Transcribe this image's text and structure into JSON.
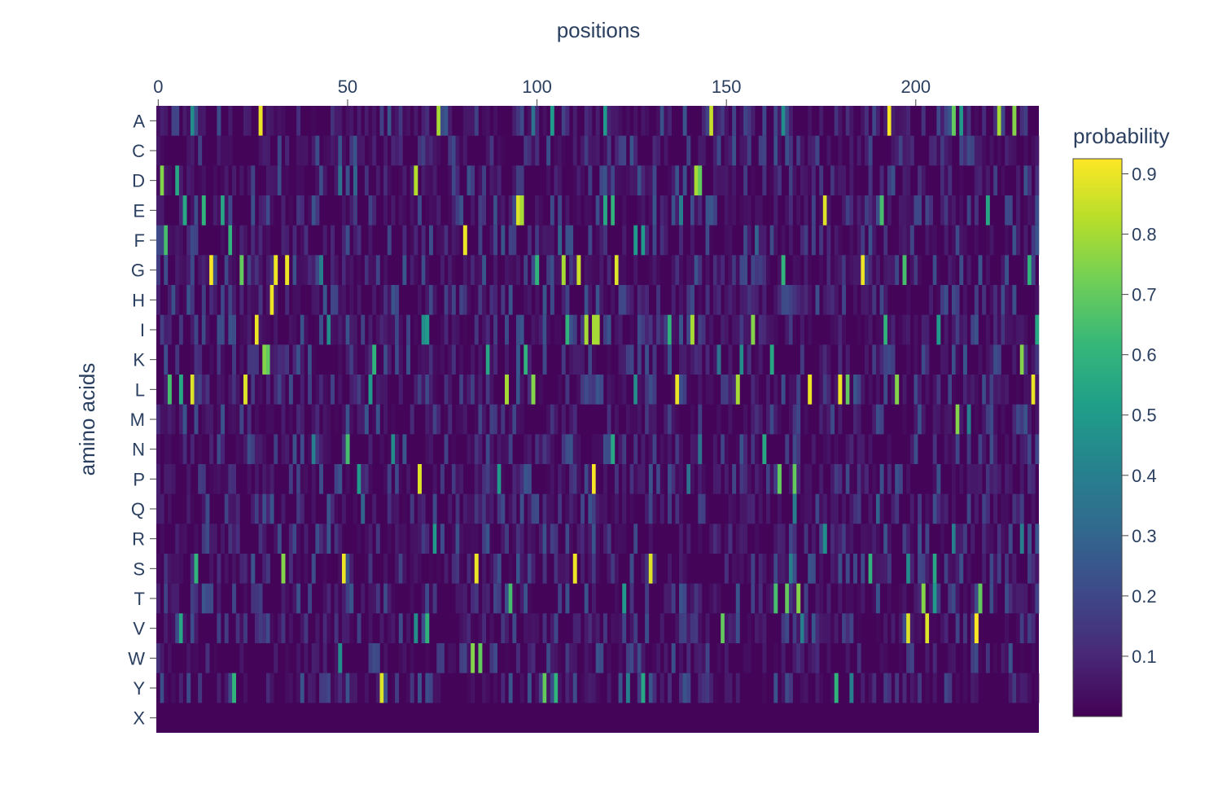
{
  "chart_data": {
    "type": "heatmap",
    "xlabel": "positions",
    "ylabel": "amino acids",
    "x_ticks": [
      0,
      50,
      100,
      150,
      200
    ],
    "xlim": [
      -0.5,
      232.5
    ],
    "x_axis_side": "top",
    "categories_y": [
      "A",
      "C",
      "D",
      "E",
      "F",
      "G",
      "H",
      "I",
      "K",
      "L",
      "M",
      "N",
      "P",
      "Q",
      "R",
      "S",
      "T",
      "V",
      "W",
      "Y",
      "X"
    ],
    "n_positions": 233,
    "colorbar": {
      "title": "probability",
      "range": [
        0.0,
        0.925
      ],
      "ticks": [
        0.1,
        0.2,
        0.3,
        0.4,
        0.5,
        0.6,
        0.7,
        0.8,
        0.9
      ],
      "tick_labels": [
        "0.1",
        "0.2",
        "0.3",
        "0.4",
        "0.5",
        "0.6",
        "0.7",
        "0.8",
        "0.9"
      ]
    },
    "colorscale": "Viridis",
    "colorscale_stops": [
      "#440154",
      "#482878",
      "#3e4989",
      "#31688e",
      "#26828e",
      "#1f9e89",
      "#35b779",
      "#6ece58",
      "#b5de2b",
      "#fde725"
    ],
    "background_value": 0.01,
    "highlights": [
      {
        "aa": "A",
        "pos": 27,
        "p": 0.9
      },
      {
        "aa": "A",
        "pos": 74,
        "p": 0.8
      },
      {
        "aa": "A",
        "pos": 146,
        "p": 0.85
      },
      {
        "aa": "A",
        "pos": 193,
        "p": 0.92
      },
      {
        "aa": "A",
        "pos": 210,
        "p": 0.7
      },
      {
        "aa": "A",
        "pos": 222,
        "p": 0.8
      },
      {
        "aa": "A",
        "pos": 226,
        "p": 0.75
      },
      {
        "aa": "A",
        "pos": 9,
        "p": 0.45
      },
      {
        "aa": "A",
        "pos": 104,
        "p": 0.5
      },
      {
        "aa": "A",
        "pos": 118,
        "p": 0.5
      },
      {
        "aa": "A",
        "pos": 165,
        "p": 0.45
      },
      {
        "aa": "A",
        "pos": 212,
        "p": 0.5
      },
      {
        "aa": "A",
        "pos": 99,
        "p": 0.35
      },
      {
        "aa": "D",
        "pos": 1,
        "p": 0.75
      },
      {
        "aa": "D",
        "pos": 5,
        "p": 0.55
      },
      {
        "aa": "D",
        "pos": 68,
        "p": 0.82
      },
      {
        "aa": "D",
        "pos": 142,
        "p": 0.8
      },
      {
        "aa": "D",
        "pos": 143,
        "p": 0.7
      },
      {
        "aa": "D",
        "pos": 48,
        "p": 0.35
      },
      {
        "aa": "D",
        "pos": 52,
        "p": 0.3
      },
      {
        "aa": "E",
        "pos": 95,
        "p": 0.88
      },
      {
        "aa": "E",
        "pos": 96,
        "p": 0.8
      },
      {
        "aa": "E",
        "pos": 176,
        "p": 0.88
      },
      {
        "aa": "E",
        "pos": 7,
        "p": 0.55
      },
      {
        "aa": "E",
        "pos": 12,
        "p": 0.6
      },
      {
        "aa": "E",
        "pos": 17,
        "p": 0.55
      },
      {
        "aa": "E",
        "pos": 118,
        "p": 0.55
      },
      {
        "aa": "E",
        "pos": 120,
        "p": 0.6
      },
      {
        "aa": "E",
        "pos": 191,
        "p": 0.65
      },
      {
        "aa": "E",
        "pos": 219,
        "p": 0.55
      },
      {
        "aa": "E",
        "pos": 138,
        "p": 0.4
      },
      {
        "aa": "F",
        "pos": 2,
        "p": 0.65
      },
      {
        "aa": "F",
        "pos": 19,
        "p": 0.6
      },
      {
        "aa": "F",
        "pos": 81,
        "p": 0.9
      },
      {
        "aa": "F",
        "pos": 126,
        "p": 0.5
      },
      {
        "aa": "F",
        "pos": 128,
        "p": 0.5
      },
      {
        "aa": "F",
        "pos": 106,
        "p": 0.3
      },
      {
        "aa": "F",
        "pos": 158,
        "p": 0.3
      },
      {
        "aa": "G",
        "pos": 14,
        "p": 0.92
      },
      {
        "aa": "G",
        "pos": 31,
        "p": 0.9
      },
      {
        "aa": "G",
        "pos": 34,
        "p": 0.9
      },
      {
        "aa": "G",
        "pos": 22,
        "p": 0.7
      },
      {
        "aa": "G",
        "pos": 107,
        "p": 0.8
      },
      {
        "aa": "G",
        "pos": 111,
        "p": 0.85
      },
      {
        "aa": "G",
        "pos": 121,
        "p": 0.88
      },
      {
        "aa": "G",
        "pos": 186,
        "p": 0.9
      },
      {
        "aa": "G",
        "pos": 100,
        "p": 0.6
      },
      {
        "aa": "G",
        "pos": 165,
        "p": 0.6
      },
      {
        "aa": "G",
        "pos": 197,
        "p": 0.65
      },
      {
        "aa": "G",
        "pos": 230,
        "p": 0.6
      },
      {
        "aa": "G",
        "pos": 43,
        "p": 0.4
      },
      {
        "aa": "H",
        "pos": 30,
        "p": 0.9
      },
      {
        "aa": "H",
        "pos": 44,
        "p": 0.25
      },
      {
        "aa": "H",
        "pos": 63,
        "p": 0.2
      },
      {
        "aa": "I",
        "pos": 26,
        "p": 0.9
      },
      {
        "aa": "I",
        "pos": 113,
        "p": 0.8
      },
      {
        "aa": "I",
        "pos": 115,
        "p": 0.8
      },
      {
        "aa": "I",
        "pos": 116,
        "p": 0.8
      },
      {
        "aa": "I",
        "pos": 108,
        "p": 0.6
      },
      {
        "aa": "I",
        "pos": 141,
        "p": 0.8
      },
      {
        "aa": "I",
        "pos": 157,
        "p": 0.75
      },
      {
        "aa": "I",
        "pos": 135,
        "p": 0.6
      },
      {
        "aa": "I",
        "pos": 192,
        "p": 0.6
      },
      {
        "aa": "I",
        "pos": 206,
        "p": 0.5
      },
      {
        "aa": "I",
        "pos": 232,
        "p": 0.55
      },
      {
        "aa": "I",
        "pos": 45,
        "p": 0.45
      },
      {
        "aa": "I",
        "pos": 70,
        "p": 0.45
      },
      {
        "aa": "I",
        "pos": 71,
        "p": 0.5
      },
      {
        "aa": "K",
        "pos": 28,
        "p": 0.75
      },
      {
        "aa": "K",
        "pos": 29,
        "p": 0.7
      },
      {
        "aa": "K",
        "pos": 57,
        "p": 0.6
      },
      {
        "aa": "K",
        "pos": 87,
        "p": 0.55
      },
      {
        "aa": "K",
        "pos": 97,
        "p": 0.6
      },
      {
        "aa": "K",
        "pos": 162,
        "p": 0.55
      },
      {
        "aa": "K",
        "pos": 228,
        "p": 0.75
      },
      {
        "aa": "K",
        "pos": 154,
        "p": 0.45
      },
      {
        "aa": "K",
        "pos": 148,
        "p": 0.35
      },
      {
        "aa": "L",
        "pos": 3,
        "p": 0.65
      },
      {
        "aa": "L",
        "pos": 9,
        "p": 0.88
      },
      {
        "aa": "L",
        "pos": 23,
        "p": 0.88
      },
      {
        "aa": "L",
        "pos": 92,
        "p": 0.8
      },
      {
        "aa": "L",
        "pos": 99,
        "p": 0.75
      },
      {
        "aa": "L",
        "pos": 137,
        "p": 0.9
      },
      {
        "aa": "L",
        "pos": 153,
        "p": 0.8
      },
      {
        "aa": "L",
        "pos": 172,
        "p": 0.9
      },
      {
        "aa": "L",
        "pos": 180,
        "p": 0.9
      },
      {
        "aa": "L",
        "pos": 182,
        "p": 0.7
      },
      {
        "aa": "L",
        "pos": 195,
        "p": 0.75
      },
      {
        "aa": "L",
        "pos": 231,
        "p": 0.9
      },
      {
        "aa": "L",
        "pos": 6,
        "p": 0.55
      },
      {
        "aa": "L",
        "pos": 56,
        "p": 0.5
      },
      {
        "aa": "L",
        "pos": 126,
        "p": 0.45
      },
      {
        "aa": "M",
        "pos": 211,
        "p": 0.75
      },
      {
        "aa": "M",
        "pos": 214,
        "p": 0.4
      },
      {
        "aa": "M",
        "pos": 55,
        "p": 0.25
      },
      {
        "aa": "N",
        "pos": 50,
        "p": 0.65
      },
      {
        "aa": "N",
        "pos": 120,
        "p": 0.55
      },
      {
        "aa": "N",
        "pos": 160,
        "p": 0.55
      },
      {
        "aa": "N",
        "pos": 41,
        "p": 0.4
      },
      {
        "aa": "N",
        "pos": 62,
        "p": 0.45
      },
      {
        "aa": "N",
        "pos": 143,
        "p": 0.35
      },
      {
        "aa": "P",
        "pos": 69,
        "p": 0.88
      },
      {
        "aa": "P",
        "pos": 115,
        "p": 0.92
      },
      {
        "aa": "P",
        "pos": 164,
        "p": 0.7
      },
      {
        "aa": "P",
        "pos": 168,
        "p": 0.7
      },
      {
        "aa": "P",
        "pos": 53,
        "p": 0.5
      },
      {
        "aa": "P",
        "pos": 90,
        "p": 0.5
      },
      {
        "aa": "P",
        "pos": 140,
        "p": 0.35
      },
      {
        "aa": "Q",
        "pos": 168,
        "p": 0.4
      },
      {
        "aa": "Q",
        "pos": 54,
        "p": 0.3
      },
      {
        "aa": "Q",
        "pos": 190,
        "p": 0.3
      },
      {
        "aa": "R",
        "pos": 73,
        "p": 0.5
      },
      {
        "aa": "R",
        "pos": 176,
        "p": 0.45
      },
      {
        "aa": "R",
        "pos": 228,
        "p": 0.4
      },
      {
        "aa": "R",
        "pos": 210,
        "p": 0.4
      },
      {
        "aa": "S",
        "pos": 33,
        "p": 0.75
      },
      {
        "aa": "S",
        "pos": 49,
        "p": 0.9
      },
      {
        "aa": "S",
        "pos": 84,
        "p": 0.9
      },
      {
        "aa": "S",
        "pos": 110,
        "p": 0.9
      },
      {
        "aa": "S",
        "pos": 130,
        "p": 0.88
      },
      {
        "aa": "S",
        "pos": 10,
        "p": 0.6
      },
      {
        "aa": "S",
        "pos": 188,
        "p": 0.6
      },
      {
        "aa": "S",
        "pos": 205,
        "p": 0.55
      },
      {
        "aa": "S",
        "pos": 167,
        "p": 0.4
      },
      {
        "aa": "S",
        "pos": 198,
        "p": 0.45
      },
      {
        "aa": "T",
        "pos": 93,
        "p": 0.65
      },
      {
        "aa": "T",
        "pos": 163,
        "p": 0.65
      },
      {
        "aa": "T",
        "pos": 166,
        "p": 0.7
      },
      {
        "aa": "T",
        "pos": 169,
        "p": 0.75
      },
      {
        "aa": "T",
        "pos": 202,
        "p": 0.75
      },
      {
        "aa": "T",
        "pos": 217,
        "p": 0.7
      },
      {
        "aa": "T",
        "pos": 123,
        "p": 0.5
      },
      {
        "aa": "T",
        "pos": 205,
        "p": 0.5
      },
      {
        "aa": "V",
        "pos": 6,
        "p": 0.55
      },
      {
        "aa": "V",
        "pos": 71,
        "p": 0.6
      },
      {
        "aa": "V",
        "pos": 149,
        "p": 0.7
      },
      {
        "aa": "V",
        "pos": 198,
        "p": 0.88
      },
      {
        "aa": "V",
        "pos": 203,
        "p": 0.88
      },
      {
        "aa": "V",
        "pos": 216,
        "p": 0.92
      },
      {
        "aa": "V",
        "pos": 68,
        "p": 0.45
      },
      {
        "aa": "V",
        "pos": 170,
        "p": 0.4
      },
      {
        "aa": "W",
        "pos": 83,
        "p": 0.75
      },
      {
        "aa": "W",
        "pos": 85,
        "p": 0.7
      },
      {
        "aa": "W",
        "pos": 48,
        "p": 0.45
      },
      {
        "aa": "Y",
        "pos": 20,
        "p": 0.6
      },
      {
        "aa": "Y",
        "pos": 59,
        "p": 0.88
      },
      {
        "aa": "Y",
        "pos": 102,
        "p": 0.7
      },
      {
        "aa": "Y",
        "pos": 105,
        "p": 0.6
      },
      {
        "aa": "Y",
        "pos": 128,
        "p": 0.55
      },
      {
        "aa": "Y",
        "pos": 179,
        "p": 0.6
      },
      {
        "aa": "Y",
        "pos": 124,
        "p": 0.4
      },
      {
        "aa": "Y",
        "pos": 183,
        "p": 0.4
      }
    ]
  }
}
